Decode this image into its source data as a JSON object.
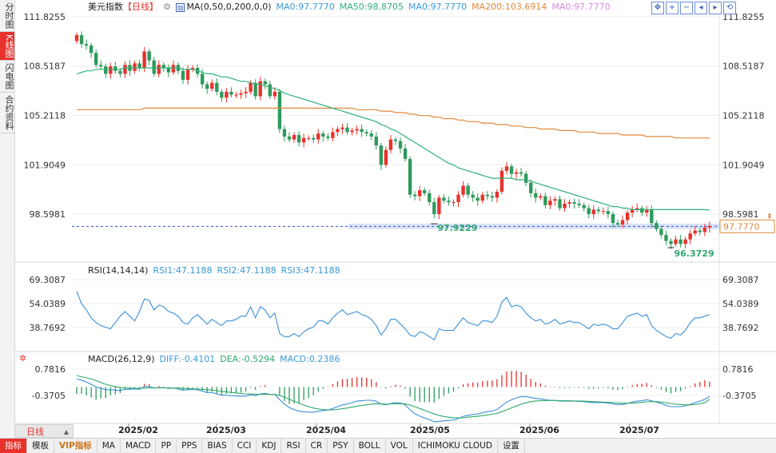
{
  "sidebar": {
    "tabs": [
      {
        "label": "分时图",
        "active": false
      },
      {
        "label": "K线图",
        "active": true
      },
      {
        "label": "闪电图",
        "active": false
      },
      {
        "label": "合约资料",
        "active": false
      }
    ]
  },
  "legend_main": {
    "name": "美元指数",
    "period": "【日线】",
    "ma_params": "MA(0,50,0,200,0,0)",
    "ma1": "MA0:97.7770",
    "ma2": "MA50:98.8705",
    "ma3": "MA0:97.7770",
    "ma4": "MA200:103.6914",
    "ma5": "MA0:97.7770"
  },
  "legend_rsi": {
    "params": "RSI(14,14,14)",
    "rsi1": "RSI1:47.1188",
    "rsi2": "RSI2:47.1188",
    "rsi3": "RSI3:47.1188"
  },
  "legend_macd": {
    "params": "MACD(26,12,9)",
    "diff": "DIFF:-0.4101",
    "dea": "DEA:-0.5294",
    "macd": "MACD:0.2386"
  },
  "price_axis": [
    "111.8255",
    "108.5187",
    "105.2118",
    "101.9049",
    "98.5981"
  ],
  "current_price": "97.7770",
  "rsi_axis": [
    "69.3087",
    "54.0389",
    "38.7692"
  ],
  "macd_axis": [
    "0.7816",
    "-0.3705"
  ],
  "x_labels": [
    "2025/02",
    "2025/03",
    "2025/04",
    "2025/05",
    "2025/06",
    "2025/07"
  ],
  "annotations": {
    "low1": "97.9229",
    "low2": "96.3729"
  },
  "period_selector": "日线",
  "bottom_menu": [
    "指标",
    "模板",
    "VIP指标",
    "MA",
    "MACD",
    "PP",
    "PPS",
    "BIAS",
    "CCI",
    "KDJ",
    "RSI",
    "CR",
    "PSY",
    "BOLL",
    "VOL",
    "ICHIMOKU CLOUD",
    "设置"
  ],
  "colors": {
    "up": "#e8322c",
    "down": "#2e9a5c",
    "ma50": "#2fb07a",
    "ma200": "#e0893a",
    "rsi": "#3a8fd8",
    "diff": "#3a8fd8",
    "dea": "#2fa86a",
    "accent": "#e8322c"
  },
  "chart_data": {
    "type": "candlestick",
    "title": "美元指数",
    "period": "日线",
    "y_range": [
      95.5,
      113.0
    ],
    "closes": [
      110.6,
      110.0,
      109.9,
      109.4,
      108.6,
      108.5,
      108.0,
      108.5,
      108.2,
      108.0,
      108.6,
      108.2,
      108.7,
      108.4,
      109.5,
      108.9,
      108.0,
      108.6,
      108.4,
      108.1,
      108.6,
      108.2,
      107.6,
      108.3,
      108.4,
      108.0,
      107.3,
      107.0,
      107.4,
      106.8,
      106.4,
      106.8,
      106.6,
      106.6,
      106.7,
      106.8,
      107.4,
      106.5,
      107.5,
      107.3,
      106.5,
      106.8,
      104.3,
      103.8,
      103.6,
      103.9,
      103.4,
      103.7,
      103.7,
      103.6,
      104.0,
      103.8,
      103.7,
      104.1,
      104.3,
      104.4,
      104.1,
      104.2,
      104.3,
      104.1,
      104.0,
      103.8,
      103.2,
      101.9,
      102.9,
      103.6,
      103.5,
      103.0,
      102.3,
      99.9,
      99.8,
      100.2,
      100.0,
      99.4,
      98.6,
      99.7,
      99.5,
      99.4,
      99.4,
      99.9,
      100.5,
      99.9,
      99.7,
      99.5,
      99.9,
      99.8,
      99.7,
      100.1,
      101.5,
      101.8,
      101.3,
      101.4,
      101.3,
      100.7,
      100.0,
      99.7,
      99.8,
      99.2,
      99.5,
      99.6,
      99.0,
      99.3,
      99.4,
      99.3,
      99.2,
      99.0,
      98.6,
      98.9,
      98.8,
      98.8,
      98.6,
      98.0,
      97.9,
      98.2,
      98.7,
      98.9,
      99.0,
      98.7,
      98.9,
      98.0,
      97.6,
      97.2,
      96.8,
      96.6,
      96.9,
      96.6,
      96.9,
      97.3,
      97.5,
      97.4,
      97.7,
      97.8
    ],
    "ma50": [
      108.0,
      108.1,
      108.2,
      108.2,
      108.3,
      108.3,
      108.3,
      108.3,
      108.3,
      108.3,
      108.4,
      108.4,
      108.4,
      108.4,
      108.4,
      108.4,
      108.4,
      108.4,
      108.4,
      108.4,
      108.4,
      108.4,
      108.3,
      108.3,
      108.3,
      108.2,
      108.1,
      108.0,
      108.0,
      107.9,
      107.8,
      107.8,
      107.7,
      107.6,
      107.5,
      107.5,
      107.4,
      107.3,
      107.3,
      107.2,
      107.1,
      107.0,
      106.9,
      106.7,
      106.6,
      106.5,
      106.4,
      106.3,
      106.2,
      106.1,
      106.0,
      105.9,
      105.8,
      105.7,
      105.6,
      105.5,
      105.4,
      105.3,
      105.2,
      105.1,
      105.0,
      104.9,
      104.8,
      104.6,
      104.5,
      104.3,
      104.2,
      104.0,
      103.8,
      103.6,
      103.4,
      103.2,
      103.0,
      102.8,
      102.6,
      102.4,
      102.2,
      102.0,
      101.9,
      101.7,
      101.6,
      101.5,
      101.4,
      101.3,
      101.2,
      101.1,
      101.0,
      101.0,
      101.0,
      101.0,
      101.0,
      100.9,
      100.9,
      100.9,
      100.8,
      100.7,
      100.6,
      100.5,
      100.4,
      100.3,
      100.2,
      100.1,
      100.0,
      99.9,
      99.8,
      99.7,
      99.6,
      99.5,
      99.4,
      99.3,
      99.2,
      99.1,
      99.1,
      99.0,
      99.0,
      98.9,
      98.9,
      98.9,
      98.9,
      98.9,
      98.9,
      98.9,
      98.9,
      98.9,
      98.9,
      98.9,
      98.9,
      98.9,
      98.9,
      98.9,
      98.9,
      98.87
    ],
    "ma200": [
      105.6,
      105.6,
      105.6,
      105.6,
      105.6,
      105.6,
      105.6,
      105.6,
      105.6,
      105.6,
      105.6,
      105.6,
      105.6,
      105.6,
      105.7,
      105.7,
      105.7,
      105.7,
      105.7,
      105.7,
      105.7,
      105.7,
      105.7,
      105.7,
      105.7,
      105.7,
      105.7,
      105.7,
      105.7,
      105.7,
      105.7,
      105.7,
      105.7,
      105.7,
      105.7,
      105.7,
      105.7,
      105.7,
      105.7,
      105.7,
      105.7,
      105.7,
      105.7,
      105.7,
      105.7,
      105.7,
      105.7,
      105.7,
      105.7,
      105.7,
      105.7,
      105.7,
      105.7,
      105.7,
      105.7,
      105.7,
      105.7,
      105.7,
      105.6,
      105.6,
      105.6,
      105.6,
      105.6,
      105.5,
      105.5,
      105.5,
      105.4,
      105.4,
      105.4,
      105.3,
      105.3,
      105.2,
      105.2,
      105.2,
      105.1,
      105.1,
      105.0,
      105.0,
      105.0,
      104.9,
      104.9,
      104.8,
      104.8,
      104.8,
      104.7,
      104.7,
      104.7,
      104.6,
      104.6,
      104.6,
      104.5,
      104.5,
      104.5,
      104.4,
      104.4,
      104.4,
      104.3,
      104.3,
      104.3,
      104.3,
      104.2,
      104.2,
      104.2,
      104.2,
      104.1,
      104.1,
      104.1,
      104.1,
      104.0,
      104.0,
      104.0,
      104.0,
      104.0,
      103.9,
      103.9,
      103.9,
      103.9,
      103.9,
      103.8,
      103.8,
      103.8,
      103.8,
      103.8,
      103.8,
      103.7,
      103.7,
      103.7,
      103.7,
      103.7,
      103.7,
      103.7,
      103.69
    ],
    "rsi": [
      62,
      54,
      50,
      45,
      42,
      40,
      39,
      38,
      42,
      46,
      49,
      46,
      43,
      49,
      57,
      56,
      50,
      53,
      52,
      49,
      48,
      46,
      42,
      41,
      45,
      47,
      44,
      41,
      44,
      42,
      40,
      43,
      43,
      44,
      46,
      46,
      52,
      45,
      52,
      50,
      45,
      48,
      35,
      33,
      33,
      35,
      33,
      36,
      38,
      39,
      43,
      43,
      41,
      45,
      48,
      50,
      47,
      48,
      49,
      47,
      46,
      44,
      40,
      34,
      38,
      44,
      44,
      41,
      38,
      34,
      33,
      36,
      35,
      33,
      31,
      38,
      37,
      37,
      37,
      41,
      45,
      42,
      41,
      40,
      43,
      43,
      42,
      46,
      55,
      58,
      52,
      53,
      52,
      48,
      45,
      43,
      44,
      41,
      42,
      44,
      41,
      42,
      43,
      42,
      42,
      40,
      38,
      41,
      40,
      41,
      40,
      38,
      38,
      42,
      46,
      47,
      48,
      46,
      47,
      40,
      37,
      35,
      33,
      32,
      35,
      34,
      37,
      42,
      45,
      45,
      46,
      47.1
    ],
    "diff": [
      0.35,
      0.3,
      0.22,
      0.12,
      0.0,
      -0.05,
      -0.12,
      -0.12,
      -0.14,
      -0.15,
      -0.1,
      -0.1,
      -0.08,
      -0.1,
      0.02,
      0.02,
      -0.05,
      -0.02,
      -0.03,
      -0.06,
      -0.05,
      -0.08,
      -0.14,
      -0.12,
      -0.1,
      -0.12,
      -0.18,
      -0.24,
      -0.24,
      -0.3,
      -0.36,
      -0.36,
      -0.38,
      -0.39,
      -0.4,
      -0.4,
      -0.33,
      -0.38,
      -0.3,
      -0.28,
      -0.32,
      -0.32,
      -0.55,
      -0.75,
      -0.9,
      -0.98,
      -1.06,
      -1.08,
      -1.1,
      -1.1,
      -1.06,
      -1.03,
      -1.01,
      -0.94,
      -0.86,
      -0.78,
      -0.74,
      -0.68,
      -0.62,
      -0.6,
      -0.58,
      -0.58,
      -0.62,
      -0.75,
      -0.78,
      -0.72,
      -0.68,
      -0.7,
      -0.78,
      -1.0,
      -1.17,
      -1.27,
      -1.35,
      -1.43,
      -1.52,
      -1.5,
      -1.48,
      -1.46,
      -1.44,
      -1.38,
      -1.28,
      -1.24,
      -1.2,
      -1.18,
      -1.12,
      -1.08,
      -1.05,
      -0.98,
      -0.82,
      -0.66,
      -0.56,
      -0.48,
      -0.42,
      -0.42,
      -0.46,
      -0.5,
      -0.52,
      -0.56,
      -0.58,
      -0.58,
      -0.62,
      -0.62,
      -0.62,
      -0.62,
      -0.63,
      -0.64,
      -0.67,
      -0.68,
      -0.68,
      -0.68,
      -0.7,
      -0.74,
      -0.77,
      -0.76,
      -0.72,
      -0.66,
      -0.62,
      -0.6,
      -0.56,
      -0.6,
      -0.66,
      -0.72,
      -0.8,
      -0.86,
      -0.86,
      -0.86,
      -0.82,
      -0.76,
      -0.68,
      -0.62,
      -0.54,
      -0.41
    ],
    "dea": [
      0.5,
      0.45,
      0.4,
      0.35,
      0.28,
      0.2,
      0.12,
      0.06,
      0.02,
      -0.02,
      -0.04,
      -0.05,
      -0.06,
      -0.06,
      -0.05,
      -0.04,
      -0.04,
      -0.04,
      -0.04,
      -0.04,
      -0.05,
      -0.05,
      -0.06,
      -0.07,
      -0.08,
      -0.09,
      -0.1,
      -0.12,
      -0.14,
      -0.16,
      -0.19,
      -0.21,
      -0.24,
      -0.26,
      -0.28,
      -0.3,
      -0.31,
      -0.32,
      -0.32,
      -0.32,
      -0.32,
      -0.32,
      -0.37,
      -0.44,
      -0.53,
      -0.62,
      -0.71,
      -0.79,
      -0.86,
      -0.92,
      -0.96,
      -0.99,
      -1.0,
      -1.0,
      -0.98,
      -0.95,
      -0.92,
      -0.88,
      -0.84,
      -0.81,
      -0.78,
      -0.75,
      -0.73,
      -0.74,
      -0.75,
      -0.74,
      -0.73,
      -0.73,
      -0.74,
      -0.79,
      -0.86,
      -0.94,
      -1.02,
      -1.1,
      -1.18,
      -1.24,
      -1.29,
      -1.32,
      -1.34,
      -1.35,
      -1.34,
      -1.32,
      -1.3,
      -1.28,
      -1.25,
      -1.22,
      -1.19,
      -1.15,
      -1.08,
      -1.0,
      -0.91,
      -0.83,
      -0.75,
      -0.69,
      -0.64,
      -0.61,
      -0.6,
      -0.59,
      -0.59,
      -0.59,
      -0.6,
      -0.6,
      -0.6,
      -0.61,
      -0.61,
      -0.62,
      -0.63,
      -0.64,
      -0.65,
      -0.66,
      -0.67,
      -0.68,
      -0.7,
      -0.71,
      -0.71,
      -0.7,
      -0.69,
      -0.67,
      -0.65,
      -0.64,
      -0.64,
      -0.66,
      -0.69,
      -0.72,
      -0.75,
      -0.77,
      -0.78,
      -0.78,
      -0.76,
      -0.73,
      -0.69,
      -0.53
    ]
  }
}
